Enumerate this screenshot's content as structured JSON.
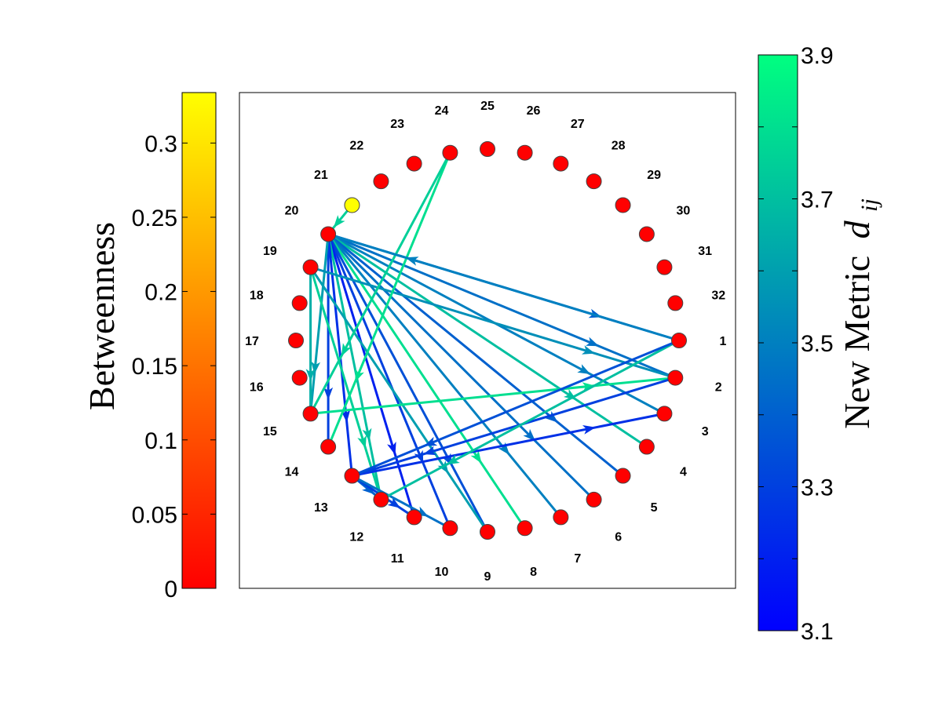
{
  "left_colorbar": {
    "title": "Betweenness",
    "min": 0,
    "max": 0.334,
    "ticks": [
      "0",
      "0.05",
      "0.1",
      "0.15",
      "0.2",
      "0.25",
      "0.3"
    ],
    "tick_values": [
      0,
      0.05,
      0.1,
      0.15,
      0.2,
      0.25,
      0.3
    ],
    "colors": {
      "low": "#ff0000",
      "high": "#ffff00"
    }
  },
  "right_colorbar": {
    "title_text": "New Metric",
    "title_math": "d",
    "title_sub": "ij",
    "min": 3.1,
    "max": 3.9,
    "ticks": [
      "3.1",
      "3.2",
      "3.3",
      "3.4",
      "3.5",
      "3.6",
      "3.7",
      "3.8",
      "3.9"
    ],
    "tick_values": [
      3.1,
      3.2,
      3.3,
      3.4,
      3.5,
      3.6,
      3.7,
      3.8,
      3.9
    ],
    "colors": {
      "low": "#0000ff",
      "high": "#00ff80"
    }
  },
  "nodes": [
    {
      "id": "1",
      "betweenness": 0
    },
    {
      "id": "2",
      "betweenness": 0
    },
    {
      "id": "3",
      "betweenness": 0
    },
    {
      "id": "4",
      "betweenness": 0
    },
    {
      "id": "5",
      "betweenness": 0
    },
    {
      "id": "6",
      "betweenness": 0
    },
    {
      "id": "7",
      "betweenness": 0
    },
    {
      "id": "8",
      "betweenness": 0
    },
    {
      "id": "9",
      "betweenness": 0
    },
    {
      "id": "10",
      "betweenness": 0
    },
    {
      "id": "11",
      "betweenness": 0
    },
    {
      "id": "12",
      "betweenness": 0
    },
    {
      "id": "13",
      "betweenness": 0
    },
    {
      "id": "14",
      "betweenness": 0
    },
    {
      "id": "15",
      "betweenness": 0
    },
    {
      "id": "16",
      "betweenness": 0
    },
    {
      "id": "17",
      "betweenness": 0
    },
    {
      "id": "18",
      "betweenness": 0
    },
    {
      "id": "19",
      "betweenness": 0
    },
    {
      "id": "20",
      "betweenness": 0
    },
    {
      "id": "21",
      "betweenness": 0.334
    },
    {
      "id": "22",
      "betweenness": 0
    },
    {
      "id": "23",
      "betweenness": 0
    },
    {
      "id": "24",
      "betweenness": 0
    },
    {
      "id": "25",
      "betweenness": 0
    },
    {
      "id": "26",
      "betweenness": 0
    },
    {
      "id": "27",
      "betweenness": 0
    },
    {
      "id": "28",
      "betweenness": 0
    },
    {
      "id": "29",
      "betweenness": 0
    },
    {
      "id": "30",
      "betweenness": 0
    },
    {
      "id": "31",
      "betweenness": 0
    },
    {
      "id": "32",
      "betweenness": 0
    }
  ],
  "edges": [
    {
      "from": 20,
      "to": 1,
      "metric": 3.4
    },
    {
      "from": 20,
      "to": 2,
      "metric": 3.45
    },
    {
      "from": 20,
      "to": 3,
      "metric": 3.5
    },
    {
      "from": 20,
      "to": 4,
      "metric": 3.7
    },
    {
      "from": 20,
      "to": 5,
      "metric": 3.4
    },
    {
      "from": 20,
      "to": 6,
      "metric": 3.45
    },
    {
      "from": 20,
      "to": 7,
      "metric": 3.5
    },
    {
      "from": 20,
      "to": 8,
      "metric": 3.8
    },
    {
      "from": 20,
      "to": 9,
      "metric": 3.35
    },
    {
      "from": 20,
      "to": 10,
      "metric": 3.3
    },
    {
      "from": 20,
      "to": 11,
      "metric": 3.2
    },
    {
      "from": 20,
      "to": 12,
      "metric": 3.7
    },
    {
      "from": 20,
      "to": 13,
      "metric": 3.25
    },
    {
      "from": 20,
      "to": 14,
      "metric": 3.3
    },
    {
      "from": 20,
      "to": 15,
      "metric": 3.6
    },
    {
      "from": 19,
      "to": 15,
      "metric": 3.65
    },
    {
      "from": 19,
      "to": 2,
      "metric": 3.55
    },
    {
      "from": 19,
      "to": 9,
      "metric": 3.6
    },
    {
      "from": 19,
      "to": 12,
      "metric": 3.75
    },
    {
      "from": 21,
      "to": 20,
      "metric": 3.75
    },
    {
      "from": 24,
      "to": 14,
      "metric": 3.8
    },
    {
      "from": 24,
      "to": 15,
      "metric": 3.75
    },
    {
      "from": 15,
      "to": 2,
      "metric": 3.8
    },
    {
      "from": 13,
      "to": 3,
      "metric": 3.25
    },
    {
      "from": 13,
      "to": 12,
      "metric": 3.4
    },
    {
      "from": 13,
      "to": 11,
      "metric": 3.3
    },
    {
      "from": 13,
      "to": 10,
      "metric": 3.45
    },
    {
      "from": 2,
      "to": 13,
      "metric": 3.3
    },
    {
      "from": 1,
      "to": 12,
      "metric": 3.7
    },
    {
      "from": 1,
      "to": 13,
      "metric": 3.35
    },
    {
      "from": 1,
      "to": 20,
      "metric": 3.5
    }
  ]
}
